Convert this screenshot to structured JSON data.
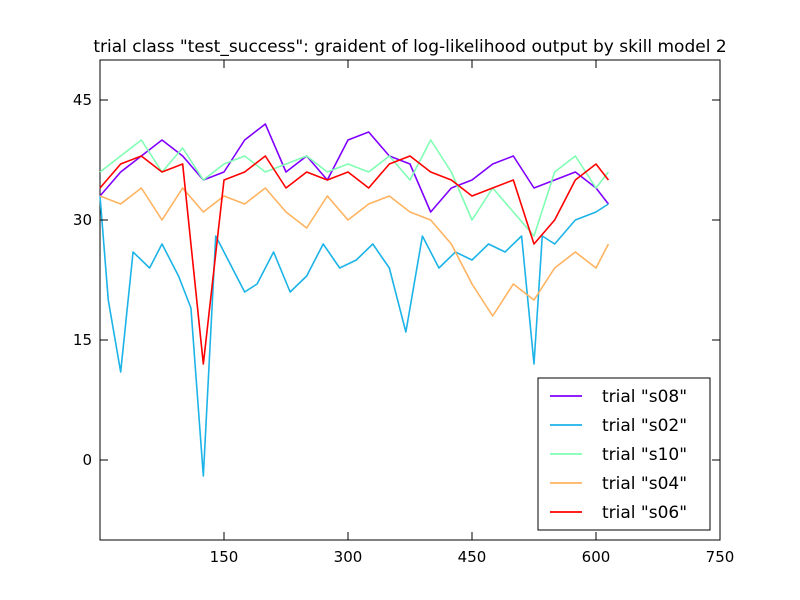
{
  "chart_data": {
    "type": "line",
    "title": "trial class \"test_success\": graident of log-likelihood output by skill model 2",
    "xlabel": "",
    "ylabel": "",
    "xlim": [
      0,
      750
    ],
    "ylim": [
      -10,
      50
    ],
    "xticks": [
      150,
      300,
      450,
      600,
      750
    ],
    "yticks": [
      0,
      15,
      30,
      45
    ],
    "grid": false,
    "legend_position": "lower-right",
    "series": [
      {
        "name": "trial \"s08\"",
        "color": "#8000ff",
        "x": [
          0,
          25,
          50,
          75,
          100,
          125,
          150,
          175,
          200,
          225,
          250,
          275,
          300,
          325,
          350,
          375,
          400,
          425,
          450,
          475,
          500,
          525,
          550,
          575,
          600,
          615
        ],
        "y": [
          33,
          36,
          38,
          40,
          38,
          35,
          36,
          40,
          42,
          36,
          38,
          35,
          40,
          41,
          38,
          37,
          31,
          34,
          35,
          37,
          38,
          34,
          35,
          36,
          34,
          32
        ]
      },
      {
        "name": "trial \"s02\"",
        "color": "#1cb3e8",
        "x": [
          0,
          10,
          25,
          40,
          60,
          75,
          95,
          110,
          125,
          140,
          160,
          175,
          190,
          210,
          230,
          250,
          270,
          290,
          310,
          330,
          350,
          370,
          390,
          410,
          430,
          450,
          470,
          490,
          510,
          525,
          535,
          550,
          575,
          600,
          615
        ],
        "y": [
          33,
          20,
          11,
          26,
          24,
          27,
          23,
          19,
          -2,
          28,
          24,
          21,
          22,
          26,
          21,
          23,
          27,
          24,
          25,
          27,
          24,
          16,
          28,
          24,
          26,
          25,
          27,
          26,
          28,
          12,
          28,
          27,
          30,
          31,
          32
        ]
      },
      {
        "name": "trial \"s10\"",
        "color": "#80ffb4",
        "x": [
          0,
          25,
          50,
          75,
          100,
          125,
          150,
          175,
          200,
          225,
          250,
          275,
          300,
          325,
          350,
          375,
          400,
          425,
          450,
          475,
          500,
          525,
          550,
          575,
          600,
          615
        ],
        "y": [
          36,
          38,
          40,
          36,
          39,
          35,
          37,
          38,
          36,
          37,
          38,
          36,
          37,
          36,
          38,
          35,
          40,
          36,
          30,
          34,
          31,
          28,
          36,
          38,
          34,
          36
        ]
      },
      {
        "name": "trial \"s04\"",
        "color": "#ffb360",
        "x": [
          0,
          25,
          50,
          75,
          100,
          125,
          150,
          175,
          200,
          225,
          250,
          275,
          300,
          325,
          350,
          375,
          400,
          425,
          450,
          475,
          500,
          525,
          550,
          575,
          600,
          615
        ],
        "y": [
          33,
          32,
          34,
          30,
          34,
          31,
          33,
          32,
          34,
          31,
          29,
          33,
          30,
          32,
          33,
          31,
          30,
          27,
          22,
          18,
          22,
          20,
          24,
          26,
          24,
          27
        ]
      },
      {
        "name": "trial \"s06\"",
        "color": "#ff0000",
        "x": [
          0,
          25,
          50,
          75,
          100,
          125,
          150,
          175,
          200,
          225,
          250,
          275,
          300,
          325,
          350,
          375,
          400,
          425,
          450,
          475,
          500,
          525,
          550,
          575,
          600,
          615
        ],
        "y": [
          34,
          37,
          38,
          36,
          37,
          12,
          35,
          36,
          38,
          34,
          36,
          35,
          36,
          34,
          37,
          38,
          36,
          35,
          33,
          34,
          35,
          27,
          30,
          35,
          37,
          35
        ]
      }
    ]
  }
}
